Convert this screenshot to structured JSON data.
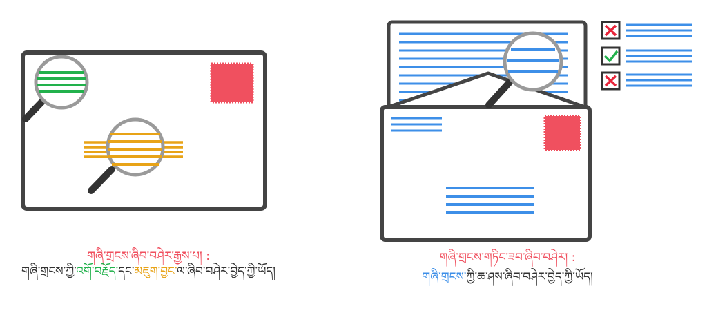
{
  "colors": {
    "red": "#f0505f",
    "green": "#22b14c",
    "orange": "#e8a317",
    "blue": "#3d8fe8",
    "frame": "#444444",
    "lens": "#9a9a9a",
    "text": "#333333"
  },
  "left_caption": {
    "title": "གཞི་གྲངས་ཞིབ་བཤེར་རྒྱས་པ། :",
    "part1": "གཞི་གྲངས་ཀྱི་",
    "part2": "འགོ་བརྗོད་",
    "part3": "དང་",
    "part4": "མཇུག་བྱང་",
    "part5": "ལ་ཞིབ་བཤེར་བྱེད་ཀྱི་ཡོད།"
  },
  "right_caption": {
    "title": "གཞི་གྲངས་གཏིང་ཟབ་ཞིབ་བཤེར། :",
    "part1": "གཞི་གྲངས་",
    "part2": "ཀྱི་ཆ་ཤས་ཞིབ་བཤེར་བྱེད་ཀྱི་ཡོད།"
  },
  "icons": {
    "magnifier": "magnifier-icon",
    "stamp": "stamp-icon",
    "check": "check-icon",
    "cross": "cross-icon",
    "envelope": "envelope-icon",
    "letter": "letter-icon"
  }
}
